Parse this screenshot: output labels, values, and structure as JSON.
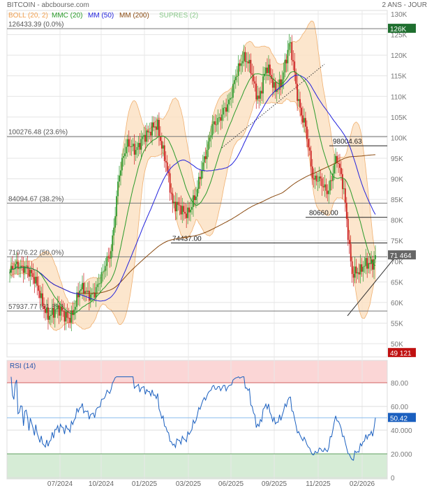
{
  "header": {
    "title": "BITCOIN - abcbourse.com",
    "period": "2 ANS - JOUR"
  },
  "legend": [
    {
      "label": "BOLL (20, 2)",
      "color": "#f0a050"
    },
    {
      "label": "MMC (20)",
      "color": "#2a9a2a"
    },
    {
      "label": "MM (50)",
      "color": "#2222dd"
    },
    {
      "label": "MM (200)",
      "color": "#8a4a10"
    },
    {
      "label": "SUPRES (2)",
      "color": "#88c888"
    }
  ],
  "badges": {
    "high": "126K",
    "last": "71 464",
    "low": "49 121",
    "rsi_last": "50.42"
  },
  "chart_data": [
    {
      "type": "candlestick",
      "title": "BITCOIN",
      "ylim": [
        50000,
        130000
      ],
      "y_ticks": [
        "130K",
        "125K",
        "120K",
        "115K",
        "110K",
        "105K",
        "100K",
        "95K",
        "90K",
        "85K",
        "80K",
        "75K",
        "70K",
        "65K",
        "60K",
        "55K",
        "50K"
      ],
      "x_ticks": [
        "07/2024",
        "10/2024",
        "01/2025",
        "03/2025",
        "06/2025",
        "09/2025",
        "11/2025",
        "02/2026"
      ],
      "approx_close_k_biweekly": [
        66,
        69,
        70,
        65,
        61,
        58,
        57,
        57,
        58,
        62,
        62,
        64,
        66,
        72,
        92,
        97,
        97,
        101,
        100,
        103,
        96,
        82,
        83,
        83,
        85,
        95,
        104,
        103,
        108,
        116,
        118,
        117,
        110,
        116,
        112,
        115,
        122,
        110,
        104,
        88,
        90,
        88,
        94,
        87,
        68,
        66,
        70,
        71.5
      ],
      "fibonacci": [
        {
          "label": "126433.39  (0.0%)",
          "value": 126433.39
        },
        {
          "label": "100276.48  (23.6%)",
          "value": 100276.48
        },
        {
          "label": "84094.67  (38.2%)",
          "value": 84094.67
        },
        {
          "label": "71076.22  (50.0%)",
          "value": 71076.22
        },
        {
          "label": "57937.77  (61.8%)",
          "value": 57937.77
        }
      ],
      "supports": [
        {
          "label": "98004.63",
          "value": 98004.63
        },
        {
          "label": "80660.00",
          "value": 80660.0
        },
        {
          "label": "74437.00",
          "value": 74437.0
        }
      ]
    },
    {
      "type": "line",
      "title": "RSI (14)",
      "ylim": [
        0,
        100
      ],
      "y_ticks": [
        "80.00",
        "60.00",
        "40.000",
        "20.000",
        "0"
      ],
      "overbought": 80,
      "oversold": 20,
      "last": 50.42
    }
  ]
}
